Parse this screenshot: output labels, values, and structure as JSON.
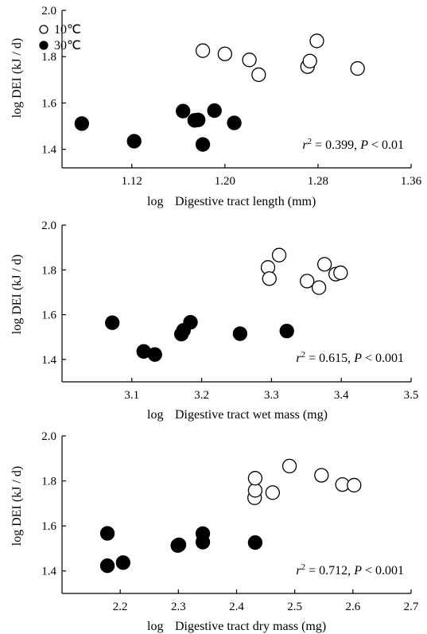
{
  "legend": {
    "entries": [
      {
        "label": "10℃",
        "marker": "open-circle"
      },
      {
        "label": "30℃",
        "marker": "filled-circle"
      }
    ]
  },
  "chart_data": [
    {
      "type": "scatter",
      "xlabel_prefix": "log",
      "xlabel_name": "Digestive tract length (mm)",
      "ylabel": "log DEI (kJ / d)",
      "xlim": [
        1.06,
        1.36
      ],
      "ylim": [
        1.32,
        2.0
      ],
      "xticks": [
        "1.12",
        "1.20",
        "1.28",
        "1.36"
      ],
      "yticks": [
        "1.4",
        "1.6",
        "1.8",
        "2.0"
      ],
      "annotation": {
        "r2": "0.399",
        "p": "0.01"
      },
      "series": [
        {
          "name": "10℃",
          "style": "open",
          "points": [
            [
              1.181,
              1.826
            ],
            [
              1.2,
              1.812
            ],
            [
              1.221,
              1.786
            ],
            [
              1.229,
              1.722
            ],
            [
              1.271,
              1.757
            ],
            [
              1.273,
              1.781
            ],
            [
              1.279,
              1.868
            ],
            [
              1.314,
              1.749
            ]
          ]
        },
        {
          "name": "30℃",
          "style": "filled",
          "points": [
            [
              1.077,
              1.511
            ],
            [
              1.122,
              1.435
            ],
            [
              1.164,
              1.565
            ],
            [
              1.174,
              1.525
            ],
            [
              1.177,
              1.527
            ],
            [
              1.181,
              1.421
            ],
            [
              1.191,
              1.567
            ],
            [
              1.208,
              1.514
            ]
          ]
        }
      ]
    },
    {
      "type": "scatter",
      "xlabel_prefix": "log",
      "xlabel_name": "Digestive tract wet mass (mg)",
      "ylabel": "log DEI (kJ / d)",
      "xlim": [
        3.0,
        3.5
      ],
      "ylim": [
        1.3,
        2.0
      ],
      "xticks": [
        "3.1",
        "3.2",
        "3.3",
        "3.4",
        "3.5"
      ],
      "yticks": [
        "1.4",
        "1.6",
        "1.8",
        "2.0"
      ],
      "annotation": {
        "r2": "0.615",
        "p": "0.001"
      },
      "series": [
        {
          "name": "10℃",
          "style": "open",
          "points": [
            [
              3.295,
              1.811
            ],
            [
              3.297,
              1.761
            ],
            [
              3.311,
              1.866
            ],
            [
              3.351,
              1.75
            ],
            [
              3.368,
              1.721
            ],
            [
              3.376,
              1.825
            ],
            [
              3.392,
              1.781
            ],
            [
              3.399,
              1.787
            ]
          ]
        },
        {
          "name": "30℃",
          "style": "filled",
          "points": [
            [
              3.072,
              1.564
            ],
            [
              3.117,
              1.436
            ],
            [
              3.133,
              1.422
            ],
            [
              3.171,
              1.513
            ],
            [
              3.174,
              1.53
            ],
            [
              3.184,
              1.566
            ],
            [
              3.255,
              1.515
            ],
            [
              3.322,
              1.527
            ]
          ]
        }
      ]
    },
    {
      "type": "scatter",
      "xlabel_prefix": "log",
      "xlabel_name": "Digestive tract dry mass (mg)",
      "ylabel": "log DEI (kJ / d)",
      "xlim": [
        2.1,
        2.7
      ],
      "ylim": [
        1.3,
        2.0
      ],
      "xticks": [
        "2.2",
        "2.3",
        "2.4",
        "2.5",
        "2.6",
        "2.7"
      ],
      "yticks": [
        "1.4",
        "1.6",
        "1.8",
        "2.0"
      ],
      "annotation": {
        "r2": "0.712",
        "p": "0.001"
      },
      "series": [
        {
          "name": "10℃",
          "style": "open",
          "points": [
            [
              2.431,
              1.725
            ],
            [
              2.432,
              1.758
            ],
            [
              2.432,
              1.812
            ],
            [
              2.462,
              1.748
            ],
            [
              2.491,
              1.866
            ],
            [
              2.546,
              1.825
            ],
            [
              2.582,
              1.784
            ],
            [
              2.602,
              1.781
            ]
          ]
        },
        {
          "name": "30℃",
          "style": "filled",
          "points": [
            [
              2.178,
              1.567
            ],
            [
              2.178,
              1.423
            ],
            [
              2.205,
              1.437
            ],
            [
              2.299,
              1.513
            ],
            [
              2.301,
              1.516
            ],
            [
              2.342,
              1.566
            ],
            [
              2.342,
              1.528
            ],
            [
              2.432,
              1.526
            ]
          ]
        }
      ]
    }
  ]
}
